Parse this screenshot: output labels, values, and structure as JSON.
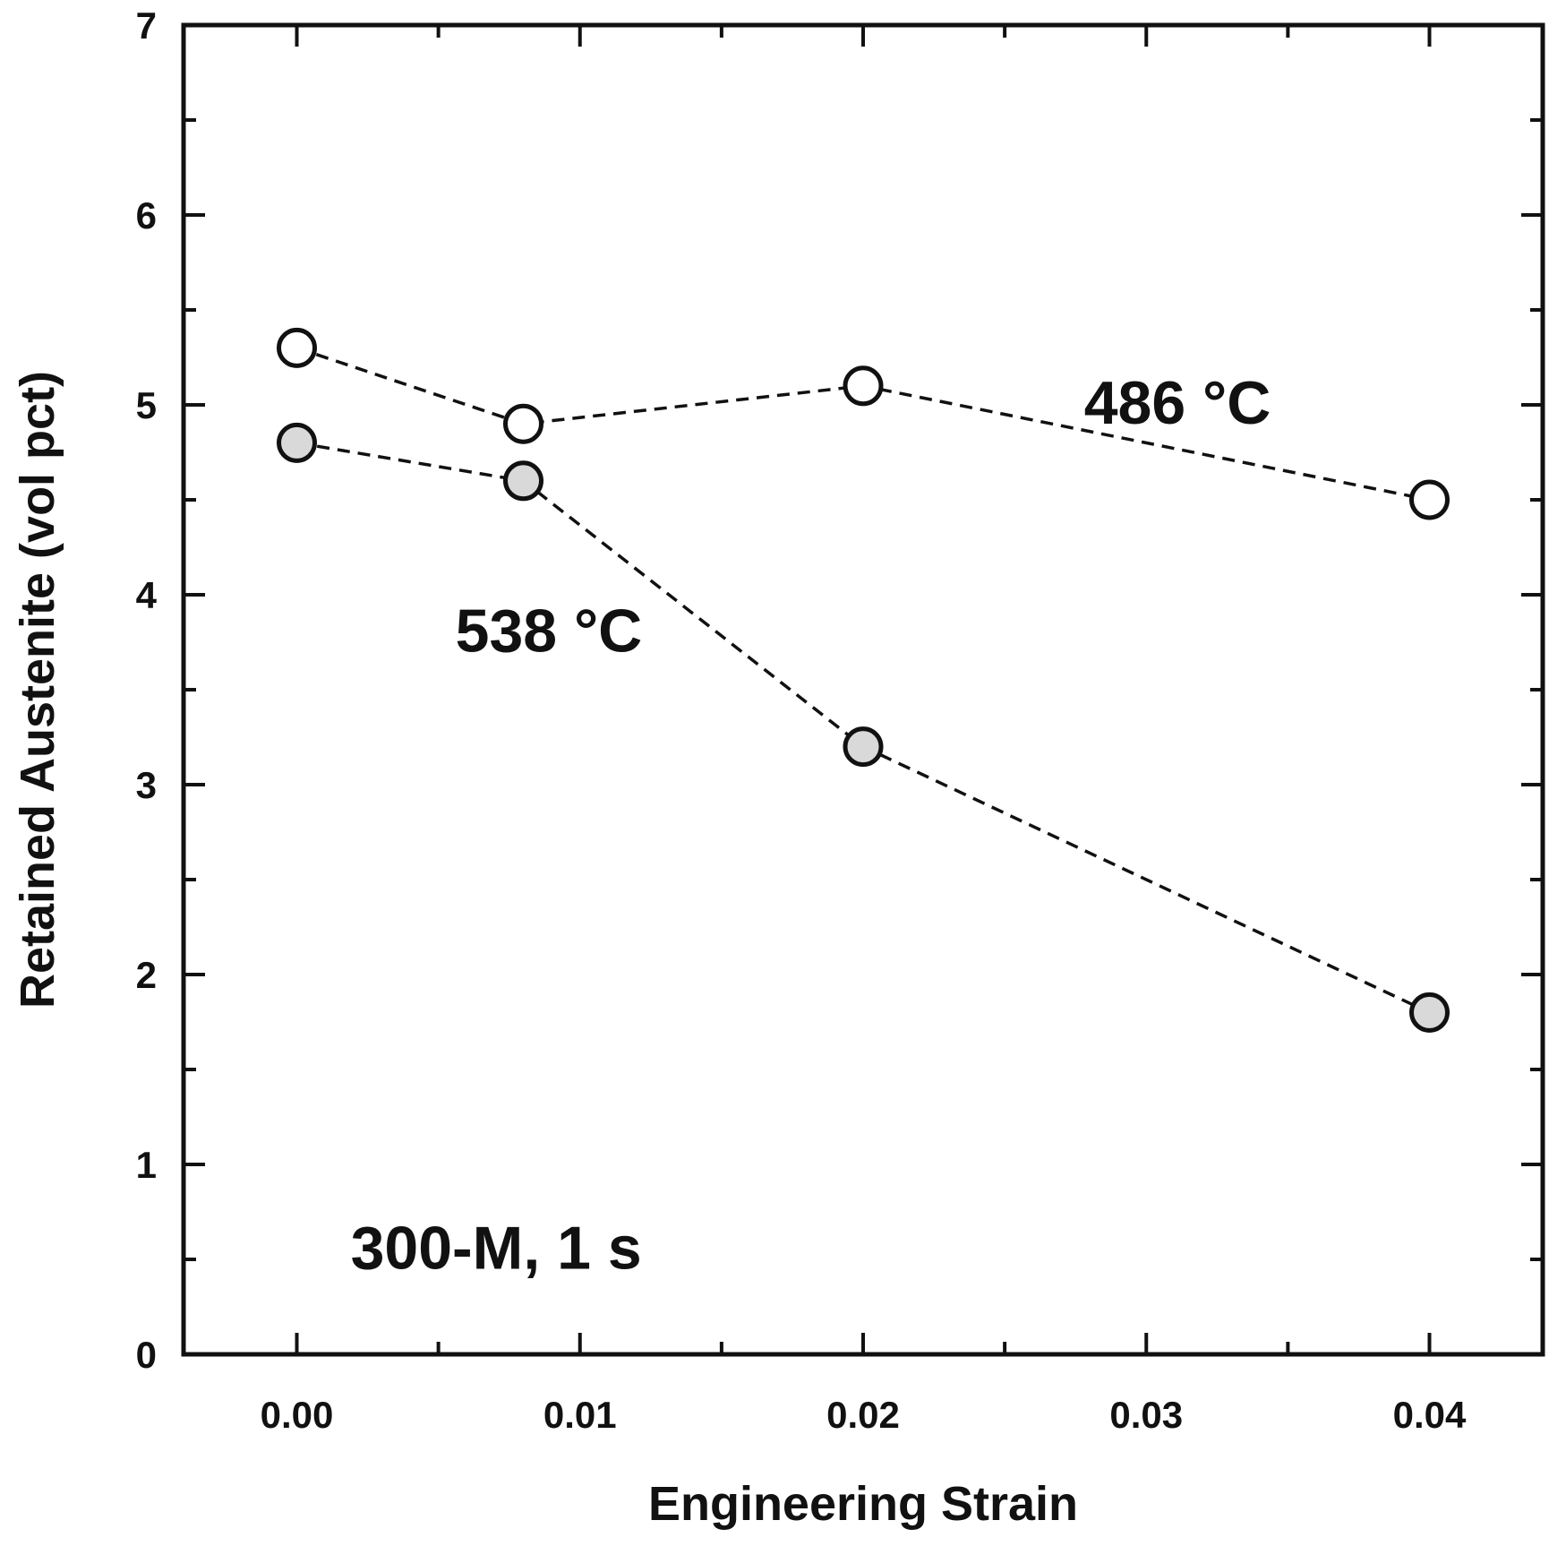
{
  "chart_data": {
    "type": "line",
    "title": "",
    "xlabel": "Engineering Strain",
    "ylabel": "Retained Austenite (vol pct)",
    "xlim": [
      -0.004,
      0.044
    ],
    "ylim": [
      0,
      7
    ],
    "x_ticks": [
      0.0,
      0.01,
      0.02,
      0.03,
      0.04
    ],
    "x_tick_labels": [
      "0.00",
      "0.01",
      "0.02",
      "0.03",
      "0.04"
    ],
    "x_minor_ticks": [
      0.005,
      0.015,
      0.025,
      0.035
    ],
    "y_ticks": [
      0,
      1,
      2,
      3,
      4,
      5,
      6,
      7
    ],
    "y_tick_labels": [
      "0",
      "1",
      "2",
      "3",
      "4",
      "5",
      "6",
      "7"
    ],
    "y_minor_ticks": [
      0.5,
      1.5,
      2.5,
      3.5,
      4.5,
      5.5,
      6.5
    ],
    "grid": false,
    "series": [
      {
        "name": "486 °C",
        "label": "486 °C",
        "label_anchor": {
          "x": 0.0311,
          "y": 4.9
        },
        "marker": "open-circle",
        "fill": "#ffffff",
        "line": "dashed",
        "x": [
          0.0,
          0.008,
          0.02,
          0.04
        ],
        "values": [
          5.3,
          4.9,
          5.1,
          4.5
        ]
      },
      {
        "name": "538 °C",
        "label": "538 °C",
        "label_anchor": {
          "x": 0.0089,
          "y": 3.7
        },
        "marker": "filled-circle",
        "fill": "#d9d9d9",
        "line": "dashed",
        "x": [
          0.0,
          0.008,
          0.02,
          0.04
        ],
        "values": [
          4.8,
          4.6,
          3.2,
          1.8
        ]
      }
    ],
    "annotations": [
      {
        "text": "300-M, 1 s",
        "x": 0.0019,
        "y": 0.45
      }
    ]
  }
}
